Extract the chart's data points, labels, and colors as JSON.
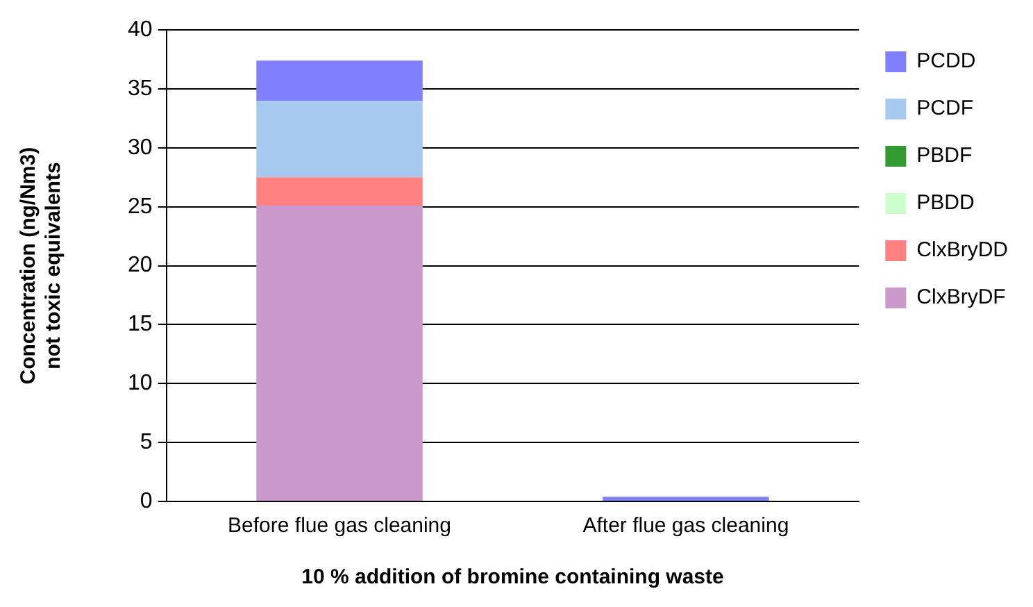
{
  "chart_data": {
    "type": "bar",
    "xlabel": "10 % addition of bromine containing waste",
    "ylabel": "Concentration (ng/Nm3)\nnot toxic equivalents",
    "categories": [
      "Before flue gas cleaning",
      "After flue gas cleaning"
    ],
    "stacked": true,
    "series": [
      {
        "name": "ClxBryDF",
        "color": "#cc99cc",
        "values": [
          25.1,
          0
        ]
      },
      {
        "name": "ClxBryDD",
        "color": "#ff8080",
        "values": [
          2.4,
          0
        ]
      },
      {
        "name": "PBDD",
        "color": "#ccffcc",
        "values": [
          0,
          0
        ]
      },
      {
        "name": "PBDF",
        "color": "#339933",
        "values": [
          0,
          0
        ]
      },
      {
        "name": "PCDF",
        "color": "#a6caf0",
        "values": [
          6.5,
          null
        ]
      },
      {
        "name": "PCDD",
        "color": "#8080ff",
        "values": [
          3.4,
          0.4
        ]
      }
    ],
    "ylim": [
      0,
      40
    ],
    "yticks": [
      0,
      5,
      10,
      15,
      20,
      25,
      30,
      35,
      40
    ],
    "grid": "y",
    "legend": "top right"
  }
}
